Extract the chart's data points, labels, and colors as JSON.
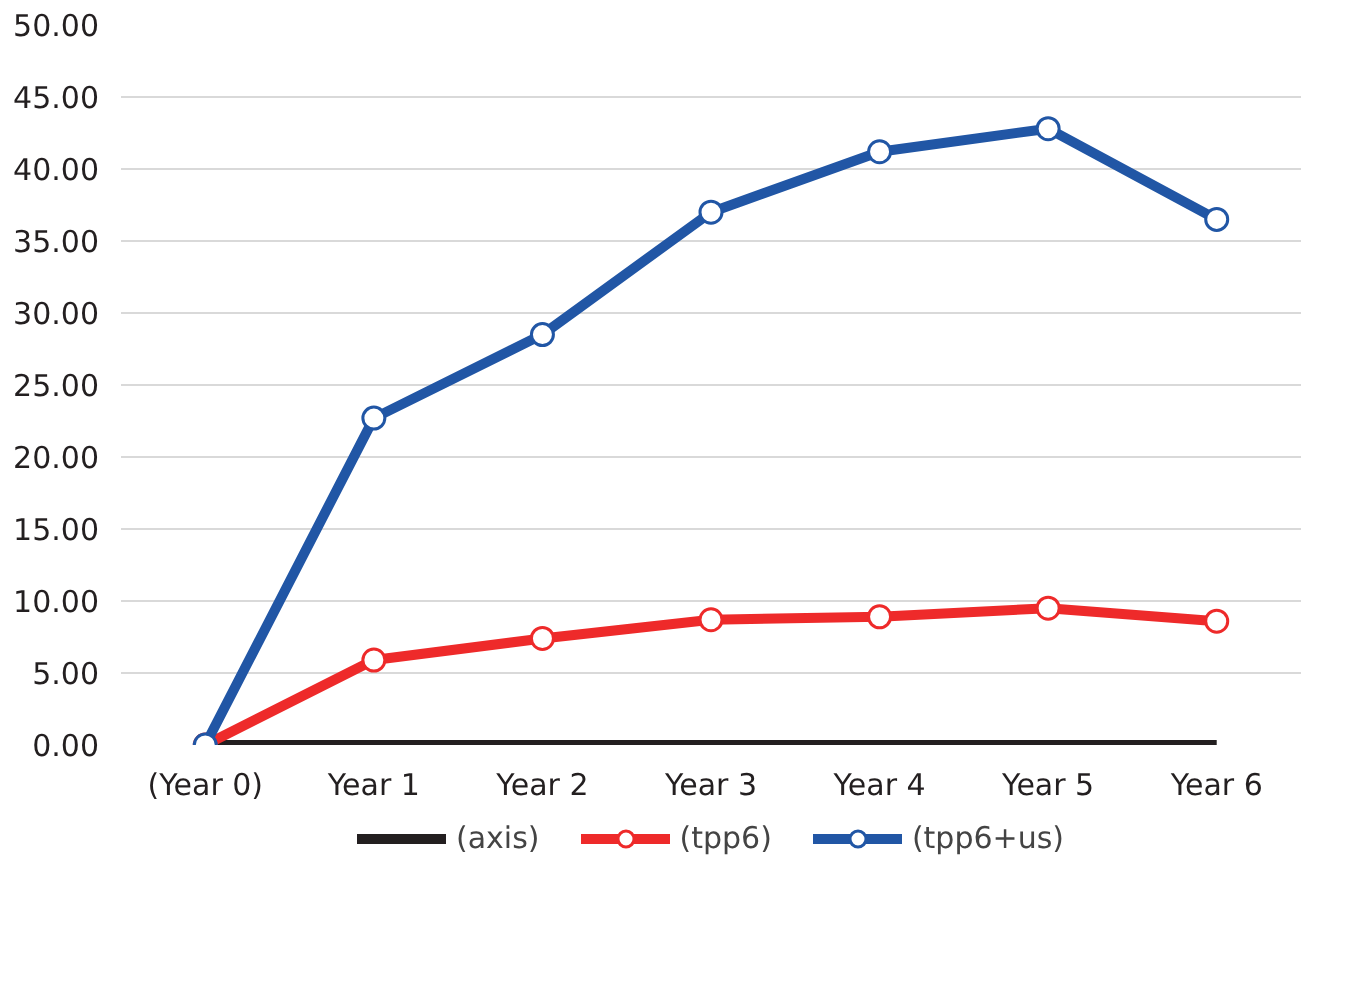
{
  "chart_data": {
    "type": "line",
    "categories": [
      "(Year 0)",
      "Year 1",
      "Year 2",
      "Year 3",
      "Year 4",
      "Year 5",
      "Year 6"
    ],
    "series": [
      {
        "name": "(axis)",
        "color": "#231f20",
        "values": [
          0,
          0,
          0,
          0,
          0,
          0,
          0
        ],
        "marker": "none"
      },
      {
        "name": "(tpp6)",
        "color": "#ee2a2a",
        "values": [
          0,
          5.9,
          7.4,
          8.7,
          8.9,
          9.5,
          8.6
        ],
        "marker": "circle"
      },
      {
        "name": "(tpp6+us)",
        "color": "#2156a5",
        "values": [
          0,
          22.7,
          28.5,
          37.0,
          41.2,
          42.8,
          36.5
        ],
        "marker": "circle"
      }
    ],
    "ylim": [
      0,
      50
    ],
    "yticks": [
      {
        "value": 0,
        "label": "0.00"
      },
      {
        "value": 5,
        "label": "5.00"
      },
      {
        "value": 10,
        "label": "10.00"
      },
      {
        "value": 15,
        "label": "15.00"
      },
      {
        "value": 20,
        "label": "20.00"
      },
      {
        "value": 25,
        "label": "25.00"
      },
      {
        "value": 30,
        "label": "30.00"
      },
      {
        "value": 35,
        "label": "35.00"
      },
      {
        "value": 40,
        "label": "40.00"
      },
      {
        "value": 45,
        "label": "45.00"
      },
      {
        "value": 50,
        "label": "50.00"
      }
    ],
    "grid": "y",
    "legend": "bottom",
    "line_style": "solid"
  }
}
